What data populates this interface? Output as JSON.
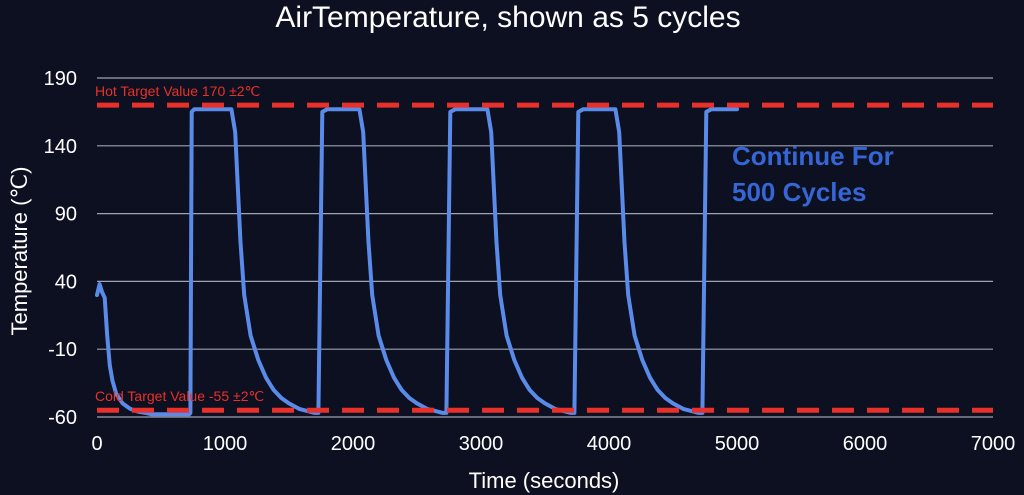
{
  "chart_data": {
    "type": "line",
    "title": "AirTemperature, shown as 5 cycles",
    "xlabel": "Time (seconds)",
    "ylabel": "Temperature (℃)",
    "xlim": [
      0,
      7000
    ],
    "ylim": [
      -60,
      190
    ],
    "x_ticks": [
      0,
      1000,
      2000,
      3000,
      4000,
      5000,
      6000,
      7000
    ],
    "y_ticks": [
      190,
      140,
      90,
      40,
      -10,
      -60
    ],
    "grid": "horizontal",
    "annotation": {
      "line1": "Continue For",
      "line2": "500 Cycles"
    },
    "target_lines": [
      {
        "label": "Hot Target Value 170 ±2℃",
        "y": 170
      },
      {
        "label": "Cold Target Value -55 ±2℃",
        "y": -55
      }
    ],
    "series": [
      {
        "values_x": [
          0,
          20,
          40,
          60,
          80,
          100,
          120,
          150,
          200,
          260,
          320,
          380,
          430,
          480,
          530,
          600,
          660,
          700,
          720,
          730,
          740,
          760,
          800,
          900,
          1000,
          1050,
          1080,
          1100,
          1120,
          1150,
          1200,
          1260,
          1320,
          1380,
          1440,
          1500,
          1580,
          1660,
          1700,
          1720,
          1730,
          1760,
          1800,
          1900,
          2000,
          2050,
          2080,
          2100,
          2120,
          2150,
          2200,
          2260,
          2320,
          2380,
          2440,
          2500,
          2580,
          2660,
          2700,
          2720,
          2730,
          2760,
          2800,
          2900,
          3000,
          3050,
          3080,
          3100,
          3120,
          3150,
          3200,
          3260,
          3320,
          3380,
          3440,
          3500,
          3580,
          3660,
          3700,
          3720,
          3730,
          3760,
          3800,
          3900,
          4000,
          4050,
          4080,
          4100,
          4120,
          4150,
          4200,
          4260,
          4320,
          4380,
          4440,
          4500,
          4580,
          4660,
          4700,
          4720,
          4730,
          4760,
          4800,
          4900,
          5000
        ],
        "values_y": [
          30,
          38,
          32,
          28,
          0,
          -22,
          -33,
          -43,
          -50,
          -54,
          -56,
          -57,
          -58,
          -58,
          -58,
          -58,
          -58,
          -58,
          -58,
          -57,
          165,
          167,
          167,
          167,
          167,
          167,
          150,
          110,
          70,
          30,
          0,
          -18,
          -31,
          -40,
          -46,
          -50,
          -54,
          -56,
          -57,
          -57,
          -57,
          165,
          167,
          167,
          167,
          167,
          150,
          110,
          70,
          30,
          0,
          -18,
          -31,
          -40,
          -46,
          -50,
          -54,
          -56,
          -57,
          -57,
          -57,
          165,
          167,
          167,
          167,
          167,
          150,
          110,
          70,
          30,
          0,
          -18,
          -31,
          -40,
          -46,
          -50,
          -54,
          -56,
          -57,
          -57,
          -57,
          165,
          167,
          167,
          167,
          167,
          150,
          110,
          70,
          30,
          0,
          -18,
          -31,
          -40,
          -46,
          -50,
          -54,
          -56,
          -57,
          -57,
          -57,
          165,
          167,
          167,
          167
        ]
      }
    ]
  },
  "colors": {
    "background": "#0d1020",
    "grid": "#9da3b4",
    "series": "#5b8be8",
    "target": "#e8312a",
    "note": "#3566d6",
    "text": "#ffffff"
  }
}
